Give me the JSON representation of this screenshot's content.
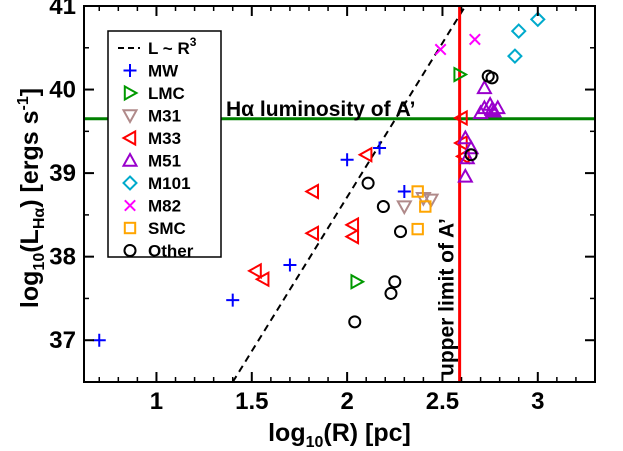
{
  "chart_data": {
    "type": "scatter",
    "xlabel_parts": {
      "base": "log",
      "sub": "10",
      "rest": "(R)  [pc]"
    },
    "ylabel_parts": {
      "base": "log",
      "sub1": "10",
      "mid": "(L",
      "sub2": "Hα",
      "rest": ") [ergs s",
      "sup": "-1",
      "end": "]"
    },
    "xlim": [
      0.62,
      3.3
    ],
    "ylim": [
      36.5,
      41.0
    ],
    "x_ticks": [
      1,
      1.5,
      2,
      2.5,
      3
    ],
    "x_tick_labels": [
      "1",
      "1.5",
      "2",
      "2.5",
      "3"
    ],
    "y_ticks": [
      37,
      38,
      39,
      40,
      41
    ],
    "y_tick_labels": [
      "37",
      "38",
      "39",
      "40",
      "41"
    ],
    "colors": {
      "MW": "#0000ff",
      "LMC": "#009900",
      "M31": "#b08a8a",
      "M33": "#ff0000",
      "M51": "#9900cc",
      "M101": "#00aacc",
      "M82": "#ff00ff",
      "SMC": "#ffa500",
      "Other": "#000000",
      "hline": "#008000",
      "vline": "#ff0000",
      "fit": "#000000"
    },
    "fit_line": {
      "label_base": "L ~ R",
      "label_sup": "3",
      "x": [
        1.4,
        2.62
      ],
      "y": [
        36.5,
        41.0
      ]
    },
    "hline": {
      "y": 39.65,
      "label": "Hα luminosity of A’"
    },
    "vline": {
      "x": 2.59,
      "label": "upper limit of A’"
    },
    "legend": [
      "MW",
      "LMC",
      "M31",
      "M33",
      "M51",
      "M101",
      "M82",
      "SMC",
      "Other"
    ],
    "series": [
      {
        "name": "MW",
        "marker": "plus",
        "points": [
          [
            0.7,
            37.0
          ],
          [
            1.4,
            37.48
          ],
          [
            1.7,
            37.9
          ],
          [
            2.0,
            39.16
          ],
          [
            2.17,
            39.3
          ],
          [
            2.3,
            38.78
          ]
        ]
      },
      {
        "name": "LMC",
        "marker": "tri-right",
        "points": [
          [
            2.05,
            37.7
          ],
          [
            2.59,
            40.18
          ]
        ]
      },
      {
        "name": "M31",
        "marker": "tri-down",
        "points": [
          [
            2.3,
            38.6
          ],
          [
            2.4,
            38.7
          ],
          [
            2.44,
            38.68
          ]
        ]
      },
      {
        "name": "M33",
        "marker": "tri-left",
        "points": [
          [
            1.52,
            37.83
          ],
          [
            1.56,
            37.73
          ],
          [
            1.82,
            38.78
          ],
          [
            1.82,
            38.28
          ],
          [
            2.03,
            38.38
          ],
          [
            2.03,
            38.24
          ],
          [
            2.1,
            39.22
          ],
          [
            2.6,
            39.66
          ],
          [
            2.6,
            39.36
          ],
          [
            2.61,
            39.2
          ]
        ]
      },
      {
        "name": "M51",
        "marker": "tri-up",
        "points": [
          [
            2.62,
            39.42
          ],
          [
            2.62,
            38.96
          ],
          [
            2.63,
            39.18
          ],
          [
            2.65,
            39.3
          ],
          [
            2.7,
            39.72
          ],
          [
            2.72,
            40.02
          ],
          [
            2.72,
            39.78
          ],
          [
            2.75,
            39.82
          ],
          [
            2.76,
            39.76
          ],
          [
            2.77,
            39.74
          ],
          [
            2.79,
            39.78
          ]
        ]
      },
      {
        "name": "M101",
        "marker": "diamond",
        "points": [
          [
            2.88,
            40.4
          ],
          [
            2.9,
            40.7
          ],
          [
            3.0,
            40.84
          ]
        ]
      },
      {
        "name": "M82",
        "marker": "cross",
        "points": [
          [
            2.49,
            40.48
          ],
          [
            2.67,
            40.6
          ]
        ]
      },
      {
        "name": "SMC",
        "marker": "square",
        "points": [
          [
            2.37,
            38.78
          ],
          [
            2.37,
            38.33
          ],
          [
            2.41,
            38.6
          ]
        ]
      },
      {
        "name": "Other",
        "marker": "circle",
        "points": [
          [
            2.04,
            37.22
          ],
          [
            2.11,
            38.88
          ],
          [
            2.19,
            38.6
          ],
          [
            2.23,
            37.56
          ],
          [
            2.25,
            37.7
          ],
          [
            2.28,
            38.3
          ],
          [
            2.65,
            39.22
          ],
          [
            2.74,
            40.16
          ],
          [
            2.76,
            40.14
          ]
        ]
      }
    ]
  }
}
